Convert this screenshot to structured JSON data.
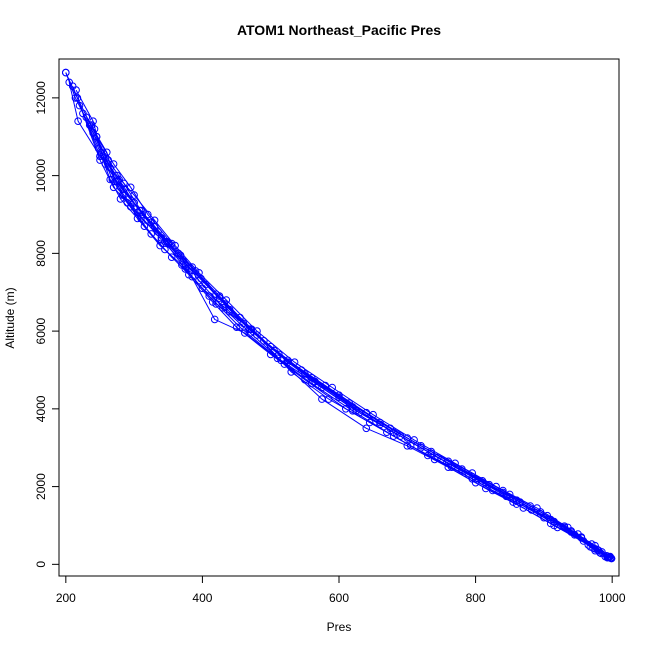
{
  "chart_data": {
    "type": "line",
    "title": "ATOM1 Northeast_Pacific Pres",
    "xlabel": "Pres",
    "ylabel": "Altitude (m)",
    "xlim": [
      190,
      1010
    ],
    "ylim": [
      -300,
      13000
    ],
    "xticks": [
      200,
      400,
      600,
      800,
      1000
    ],
    "yticks": [
      0,
      2000,
      4000,
      6000,
      8000,
      10000,
      12000
    ],
    "grid": false,
    "legend": "none",
    "color": "#0000ff",
    "marker": "open-circle",
    "series": [
      {
        "x": [
          200,
          214,
          240,
          262,
          285,
          310,
          345,
          375,
          410,
          455,
          510,
          560,
          620,
          680,
          740,
          800,
          860,
          915,
          965,
          990
        ],
        "y": [
          12650,
          12000,
          11100,
          10400,
          9800,
          9100,
          8300,
          7600,
          6900,
          6100,
          5300,
          4650,
          3950,
          3300,
          2700,
          2100,
          1550,
          1000,
          500,
          200
        ]
      },
      {
        "x": [
          200,
          217,
          245,
          270,
          295,
          320,
          355,
          390,
          425,
          470,
          525,
          580,
          640,
          700,
          760,
          820,
          880,
          930,
          975,
          995
        ],
        "y": [
          12650,
          12000,
          11000,
          10300,
          9700,
          9000,
          8250,
          7550,
          6850,
          6050,
          5250,
          4600,
          3900,
          3250,
          2650,
          2050,
          1500,
          980,
          480,
          180
        ]
      },
      {
        "x": [
          205,
          218,
          250,
          275,
          300,
          330,
          360,
          395,
          435,
          480,
          535,
          590,
          650,
          710,
          770,
          830,
          890,
          935,
          972,
          993
        ],
        "y": [
          12400,
          11400,
          10500,
          10000,
          9500,
          8850,
          8200,
          7500,
          6800,
          6000,
          5200,
          4550,
          3850,
          3200,
          2600,
          2000,
          1450,
          950,
          420,
          170
        ]
      },
      {
        "x": [
          215,
          240,
          252,
          268,
          290,
          315,
          345,
          380,
          415,
          450,
          500,
          550,
          610,
          670,
          730,
          795,
          855,
          910,
          970,
          992
        ],
        "y": [
          12200,
          11400,
          10600,
          9900,
          9300,
          8700,
          8100,
          7450,
          6750,
          6100,
          5400,
          4750,
          4000,
          3400,
          2800,
          2200,
          1600,
          1050,
          520,
          220
        ]
      },
      {
        "x": [
          220,
          248,
          265,
          280,
          305,
          338,
          370,
          400,
          440,
          490,
          545,
          600,
          660,
          720,
          780,
          840,
          895,
          940,
          978,
          998
        ],
        "y": [
          11800,
          10700,
          9900,
          9400,
          8900,
          8200,
          7700,
          7100,
          6500,
          5750,
          5000,
          4350,
          3650,
          3050,
          2450,
          1900,
          1350,
          860,
          380,
          160
        ]
      },
      {
        "x": [
          225,
          250,
          270,
          295,
          325,
          355,
          385,
          420,
          460,
          505,
          560,
          615,
          675,
          735,
          795,
          850,
          905,
          950,
          980,
          996
        ],
        "y": [
          11600,
          10400,
          9700,
          9200,
          8500,
          7900,
          7400,
          6700,
          6200,
          5500,
          4800,
          4150,
          3500,
          2900,
          2350,
          1800,
          1250,
          780,
          360,
          190
        ]
      },
      {
        "x": [
          235,
          255,
          278,
          300,
          330,
          365,
          395,
          430,
          470,
          515,
          570,
          625,
          685,
          745,
          800,
          860,
          910,
          955,
          985,
          999
        ],
        "y": [
          11300,
          10500,
          9900,
          9300,
          8700,
          8000,
          7300,
          6600,
          5950,
          5250,
          4600,
          3950,
          3350,
          2750,
          2200,
          1650,
          1150,
          700,
          320,
          150
        ]
      },
      {
        "x": [
          242,
          258,
          280,
          308,
          335,
          368,
          398,
          432,
          468,
          512,
          565,
          620,
          680,
          735,
          790,
          845,
          900,
          945,
          975,
          997
        ],
        "y": [
          11200,
          10300,
          9700,
          9100,
          8550,
          7950,
          7350,
          6700,
          6050,
          5400,
          4700,
          4050,
          3400,
          2850,
          2300,
          1750,
          1200,
          760,
          350,
          200
        ]
      },
      {
        "x": [
          210,
          250,
          275,
          300,
          325,
          350,
          380,
          420,
          455,
          500,
          550,
          600,
          660,
          720,
          780,
          840,
          895,
          940,
          975,
          994
        ],
        "y": [
          12300,
          10500,
          9850,
          9300,
          8800,
          8250,
          7650,
          6950,
          6350,
          5600,
          4900,
          4300,
          3600,
          3000,
          2400,
          1850,
          1300,
          830,
          400,
          180
        ]
      },
      {
        "x": [
          245,
          265,
          285,
          312,
          340,
          372,
          405,
          440,
          480,
          525,
          575,
          630,
          690,
          750,
          810,
          865,
          915,
          955,
          982,
          998
        ],
        "y": [
          11000,
          10200,
          9650,
          9000,
          8400,
          7800,
          7200,
          6550,
          5900,
          5200,
          4550,
          3900,
          3300,
          2700,
          2150,
          1600,
          1100,
          680,
          300,
          170
        ]
      },
      {
        "x": [
          230,
          260,
          272,
          285,
          305,
          340,
          375,
          418,
          462,
          520,
          575,
          640,
          700,
          760,
          815,
          870,
          920,
          958,
          984,
          999
        ],
        "y": [
          11500,
          10600,
          9850,
          9500,
          9050,
          8350,
          7700,
          6300,
          5950,
          5150,
          4250,
          3500,
          3050,
          2500,
          1950,
          1450,
          950,
          600,
          280,
          150
        ]
      },
      {
        "x": [
          238,
          262,
          283,
          310,
          348,
          385,
          425,
          472,
          530,
          585,
          645,
          705,
          765,
          825,
          882,
          930,
          968,
          993
        ],
        "y": [
          11300,
          10300,
          9500,
          8900,
          8300,
          7650,
          6900,
          6050,
          4950,
          4250,
          3650,
          3050,
          2500,
          1900,
          1400,
          950,
          450,
          190
        ]
      }
    ]
  }
}
